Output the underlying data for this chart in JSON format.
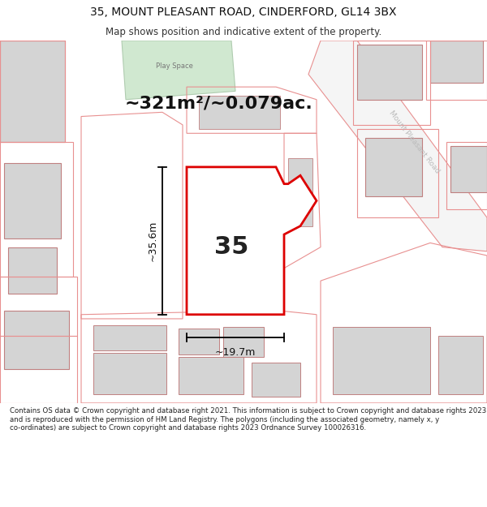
{
  "title": "35, MOUNT PLEASANT ROAD, CINDERFORD, GL14 3BX",
  "subtitle": "Map shows position and indicative extent of the property.",
  "area_text": "~321m²/~0.079ac.",
  "label_35": "35",
  "dim_height": "~35.6m",
  "dim_width": "~19.7m",
  "road_label": "Mount Pleasant Road",
  "play_space_label": "Play Space",
  "footer": "Contains OS data © Crown copyright and database right 2021. This information is subject to Crown copyright and database rights 2023 and is reproduced with the permission of HM Land Registry. The polygons (including the associated geometry, namely x, y co-ordinates) are subject to Crown copyright and database rights 2023 Ordnance Survey 100026316.",
  "bg_color": "#ffffff",
  "map_bg": "#ffffff",
  "highlight_color": "#dd0000",
  "building_fill": "#d4d4d4",
  "building_stroke": "#c08080",
  "parcel_stroke": "#e89090",
  "road_color": "#e89090",
  "green_fill": "#d0e8d0",
  "green_stroke": "#b0ccb0",
  "dim_color": "#111111",
  "label_color": "#333333"
}
